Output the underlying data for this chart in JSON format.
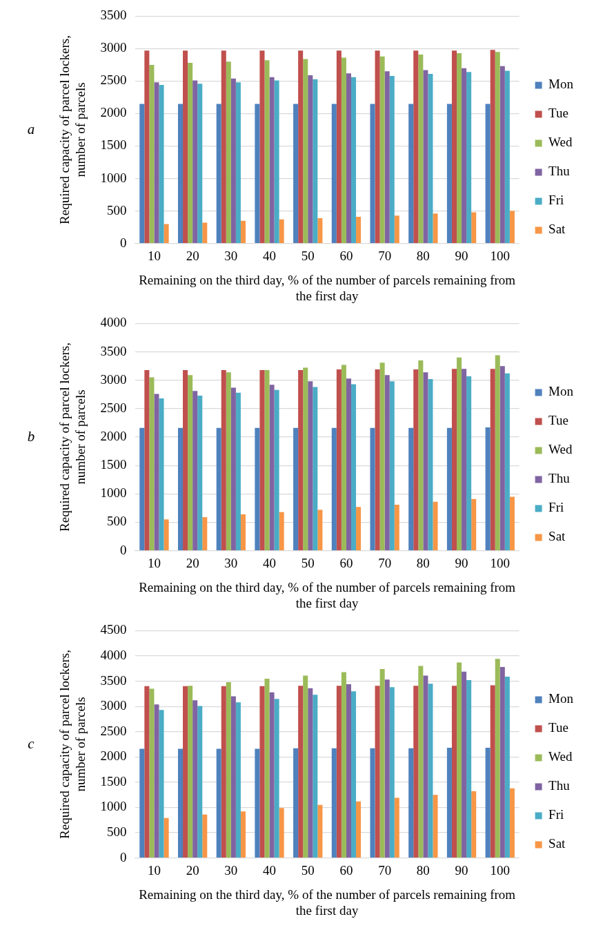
{
  "chart_data": [
    {
      "type": "bar",
      "title": "a",
      "xlabel": "Remaining on the third day, % of the number of parcels remaining from the first day",
      "ylabel": "Required capacity of parcel lockers, number of parcels",
      "categories": [
        "10",
        "20",
        "30",
        "40",
        "50",
        "60",
        "70",
        "80",
        "90",
        "100"
      ],
      "ylim": [
        0,
        3500
      ],
      "yticks": [
        0,
        500,
        1000,
        1500,
        2000,
        2500,
        3000,
        3500
      ],
      "grid": "y",
      "legend": "right",
      "series": [
        {
          "name": "Mon",
          "color": "#4f81bd",
          "values": [
            2150,
            2150,
            2150,
            2150,
            2150,
            2150,
            2150,
            2150,
            2150,
            2150
          ]
        },
        {
          "name": "Tue",
          "color": "#c0504d",
          "values": [
            2970,
            2970,
            2970,
            2970,
            2970,
            2970,
            2970,
            2970,
            2970,
            2980
          ]
        },
        {
          "name": "Wed",
          "color": "#9bbb59",
          "values": [
            2750,
            2780,
            2800,
            2820,
            2840,
            2860,
            2880,
            2910,
            2930,
            2950
          ]
        },
        {
          "name": "Thu",
          "color": "#8064a2",
          "values": [
            2480,
            2510,
            2540,
            2560,
            2590,
            2620,
            2650,
            2670,
            2700,
            2730
          ]
        },
        {
          "name": "Fri",
          "color": "#4bacc6",
          "values": [
            2440,
            2460,
            2480,
            2510,
            2530,
            2560,
            2580,
            2610,
            2640,
            2660
          ]
        },
        {
          "name": "Sat",
          "color": "#f79646",
          "values": [
            300,
            320,
            350,
            370,
            390,
            410,
            430,
            460,
            480,
            500
          ]
        }
      ]
    },
    {
      "type": "bar",
      "title": "b",
      "xlabel": "Remaining on the third day, % of the number of parcels remaining from the first day",
      "ylabel": "Required capacity of parcel lockers, number of parcels",
      "categories": [
        "10",
        "20",
        "30",
        "40",
        "50",
        "60",
        "70",
        "80",
        "90",
        "100"
      ],
      "ylim": [
        0,
        4000
      ],
      "yticks": [
        0,
        500,
        1000,
        1500,
        2000,
        2500,
        3000,
        3500,
        4000
      ],
      "grid": "y",
      "legend": "right",
      "series": [
        {
          "name": "Mon",
          "color": "#4f81bd",
          "values": [
            2160,
            2160,
            2160,
            2160,
            2160,
            2160,
            2160,
            2160,
            2160,
            2170
          ]
        },
        {
          "name": "Tue",
          "color": "#c0504d",
          "values": [
            3180,
            3180,
            3180,
            3180,
            3180,
            3190,
            3190,
            3190,
            3200,
            3200
          ]
        },
        {
          "name": "Wed",
          "color": "#9bbb59",
          "values": [
            3050,
            3090,
            3140,
            3180,
            3220,
            3270,
            3310,
            3350,
            3400,
            3440
          ]
        },
        {
          "name": "Thu",
          "color": "#8064a2",
          "values": [
            2760,
            2810,
            2870,
            2920,
            2980,
            3030,
            3090,
            3140,
            3200,
            3250
          ]
        },
        {
          "name": "Fri",
          "color": "#4bacc6",
          "values": [
            2680,
            2730,
            2780,
            2830,
            2880,
            2930,
            2980,
            3020,
            3070,
            3120
          ]
        },
        {
          "name": "Sat",
          "color": "#f79646",
          "values": [
            550,
            590,
            640,
            680,
            720,
            770,
            810,
            860,
            910,
            950
          ]
        }
      ]
    },
    {
      "type": "bar",
      "title": "c",
      "xlabel": "Remaining on the third day, % of the number of parcels remaining from the first day",
      "ylabel": "Required capacity of parcel lockers, number of parcels",
      "categories": [
        "10",
        "20",
        "30",
        "40",
        "50",
        "60",
        "70",
        "80",
        "90",
        "100"
      ],
      "ylim": [
        0,
        4500
      ],
      "yticks": [
        0,
        500,
        1000,
        1500,
        2000,
        2500,
        3000,
        3500,
        4000,
        4500
      ],
      "grid": "y",
      "legend": "right",
      "series": [
        {
          "name": "Mon",
          "color": "#4f81bd",
          "values": [
            2160,
            2160,
            2160,
            2160,
            2170,
            2170,
            2170,
            2170,
            2180,
            2180
          ]
        },
        {
          "name": "Tue",
          "color": "#c0504d",
          "values": [
            3400,
            3400,
            3400,
            3400,
            3410,
            3410,
            3410,
            3410,
            3410,
            3420
          ]
        },
        {
          "name": "Wed",
          "color": "#9bbb59",
          "values": [
            3350,
            3410,
            3480,
            3550,
            3610,
            3680,
            3740,
            3800,
            3870,
            3940
          ]
        },
        {
          "name": "Thu",
          "color": "#8064a2",
          "values": [
            3040,
            3120,
            3200,
            3280,
            3360,
            3440,
            3530,
            3610,
            3690,
            3780
          ]
        },
        {
          "name": "Fri",
          "color": "#4bacc6",
          "values": [
            2930,
            3010,
            3080,
            3150,
            3230,
            3300,
            3380,
            3450,
            3520,
            3590
          ]
        },
        {
          "name": "Sat",
          "color": "#f79646",
          "values": [
            790,
            860,
            920,
            990,
            1050,
            1120,
            1190,
            1250,
            1320,
            1380
          ]
        }
      ]
    }
  ]
}
